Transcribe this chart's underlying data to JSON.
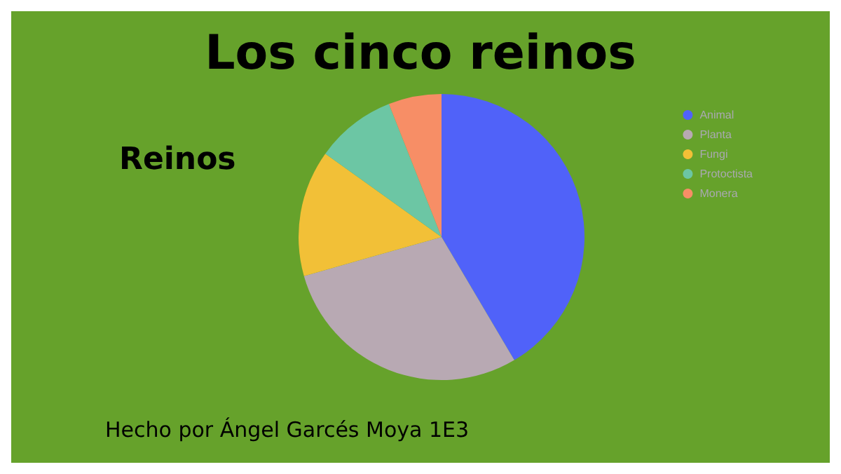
{
  "chart_data": {
    "type": "pie",
    "title": "Los cinco reinos",
    "subtitle": "Reinos",
    "categories": [
      "Animal",
      "Planta",
      "Fungi",
      "Protoctista",
      "Monera"
    ],
    "values": [
      41.5,
      29.1,
      14.3,
      9.1,
      6.0
    ],
    "colors": [
      "#5062f9",
      "#b8a9b3",
      "#f2c037",
      "#6cc6a4",
      "#f78e66"
    ],
    "legend": "top right",
    "annotations": [
      "Hecho por Ángel Garcés Moya 1E3"
    ]
  }
}
